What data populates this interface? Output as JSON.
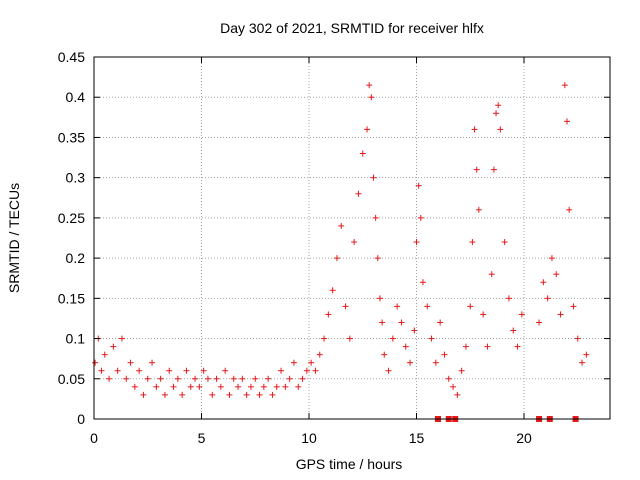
{
  "chart_data": {
    "type": "scatter",
    "title": "Day 302 of 2021, SRMTID for receiver hlfx",
    "xlabel": "GPS time / hours",
    "ylabel": "SRMTID / TECUs",
    "xlim": [
      0,
      24
    ],
    "ylim": [
      0,
      0.45
    ],
    "xticks": [
      0,
      5,
      10,
      15,
      20
    ],
    "xtick_labels": [
      "0",
      "5",
      "10",
      "15",
      "20"
    ],
    "yticks": [
      0,
      0.05,
      0.1,
      0.15,
      0.2,
      0.25,
      0.3,
      0.35,
      0.4,
      0.45
    ],
    "ytick_labels": [
      "0",
      "0.05",
      "0.1",
      "0.15",
      "0.2",
      "0.25",
      "0.3",
      "0.35",
      "0.4",
      "0.45"
    ],
    "grid": true,
    "marker": "plus",
    "series_color": "#e31a1c",
    "series": [
      {
        "name": "SRMTID",
        "x": [
          0.05,
          0.2,
          0.35,
          0.5,
          0.7,
          0.9,
          1.1,
          1.3,
          1.5,
          1.7,
          1.9,
          2.1,
          2.3,
          2.5,
          2.7,
          2.9,
          3.1,
          3.3,
          3.5,
          3.7,
          3.9,
          4.1,
          4.3,
          4.5,
          4.7,
          4.9,
          5.1,
          5.3,
          5.5,
          5.7,
          5.9,
          6.1,
          6.3,
          6.5,
          6.7,
          6.9,
          7.1,
          7.3,
          7.5,
          7.7,
          7.9,
          8.1,
          8.3,
          8.5,
          8.7,
          8.9,
          9.1,
          9.3,
          9.5,
          9.7,
          9.9,
          10.1,
          10.3,
          10.5,
          10.7,
          10.9,
          11.1,
          11.3,
          11.5,
          11.7,
          11.9,
          12.1,
          12.3,
          12.5,
          12.7,
          12.8,
          12.9,
          13.0,
          13.1,
          13.2,
          13.3,
          13.4,
          13.5,
          13.7,
          13.9,
          14.1,
          14.3,
          14.5,
          14.7,
          14.9,
          15.0,
          15.1,
          15.2,
          15.3,
          15.5,
          15.7,
          15.9,
          16.1,
          16.3,
          16.5,
          16.7,
          16.9,
          17.1,
          17.3,
          17.5,
          17.6,
          17.7,
          17.8,
          17.9,
          18.1,
          18.3,
          18.5,
          18.6,
          18.7,
          18.8,
          18.9,
          19.1,
          19.3,
          19.5,
          19.7,
          19.9,
          20.7,
          20.9,
          21.1,
          21.3,
          21.5,
          21.7,
          21.9,
          22.0,
          22.1,
          22.3,
          22.5,
          22.7,
          22.9
        ],
        "y": [
          0.07,
          0.1,
          0.06,
          0.08,
          0.05,
          0.09,
          0.06,
          0.1,
          0.05,
          0.07,
          0.04,
          0.06,
          0.03,
          0.05,
          0.07,
          0.04,
          0.05,
          0.03,
          0.06,
          0.04,
          0.05,
          0.03,
          0.06,
          0.04,
          0.05,
          0.04,
          0.06,
          0.05,
          0.03,
          0.05,
          0.04,
          0.06,
          0.03,
          0.05,
          0.04,
          0.05,
          0.03,
          0.04,
          0.05,
          0.03,
          0.04,
          0.05,
          0.03,
          0.04,
          0.06,
          0.04,
          0.05,
          0.07,
          0.04,
          0.05,
          0.06,
          0.07,
          0.06,
          0.08,
          0.1,
          0.13,
          0.16,
          0.2,
          0.24,
          0.14,
          0.1,
          0.22,
          0.28,
          0.33,
          0.36,
          0.415,
          0.4,
          0.3,
          0.25,
          0.2,
          0.15,
          0.12,
          0.08,
          0.06,
          0.1,
          0.14,
          0.12,
          0.09,
          0.07,
          0.11,
          0.22,
          0.29,
          0.25,
          0.17,
          0.14,
          0.1,
          0.07,
          0.12,
          0.08,
          0.05,
          0.04,
          0.03,
          0.06,
          0.09,
          0.14,
          0.22,
          0.36,
          0.31,
          0.26,
          0.13,
          0.09,
          0.18,
          0.31,
          0.38,
          0.39,
          0.36,
          0.22,
          0.15,
          0.11,
          0.09,
          0.13,
          0.12,
          0.17,
          0.15,
          0.2,
          0.18,
          0.13,
          0.415,
          0.37,
          0.26,
          0.14,
          0.1,
          0.07,
          0.08
        ]
      }
    ],
    "flag_markers_x": [
      16.0,
      16.5,
      16.8,
      20.7,
      21.2,
      22.4
    ]
  }
}
